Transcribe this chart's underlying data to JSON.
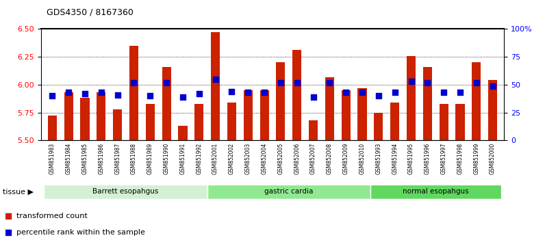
{
  "title": "GDS4350 / 8167360",
  "samples": [
    "GSM851983",
    "GSM851984",
    "GSM851985",
    "GSM851986",
    "GSM851987",
    "GSM851988",
    "GSM851989",
    "GSM851990",
    "GSM851991",
    "GSM851992",
    "GSM852001",
    "GSM852002",
    "GSM852003",
    "GSM852004",
    "GSM852005",
    "GSM852006",
    "GSM852007",
    "GSM852008",
    "GSM852009",
    "GSM852010",
    "GSM851993",
    "GSM851994",
    "GSM851995",
    "GSM851996",
    "GSM851997",
    "GSM851998",
    "GSM851999",
    "GSM852000"
  ],
  "bar_values": [
    5.72,
    5.93,
    5.88,
    5.93,
    5.78,
    6.35,
    5.83,
    6.16,
    5.63,
    5.83,
    6.47,
    5.84,
    5.95,
    5.95,
    6.2,
    6.31,
    5.68,
    6.07,
    5.95,
    5.97,
    5.75,
    5.84,
    6.26,
    6.16,
    5.83,
    5.83,
    6.2,
    6.04
  ],
  "percentile_values": [
    40,
    43,
    42,
    43,
    41,
    52,
    40,
    52,
    39,
    42,
    55,
    44,
    43,
    43,
    52,
    52,
    39,
    52,
    43,
    43,
    40,
    43,
    53,
    52,
    43,
    43,
    52,
    49
  ],
  "groups": [
    {
      "label": "Barrett esopahgus",
      "start": 0,
      "end": 10,
      "color": "#d4f0d4"
    },
    {
      "label": "gastric cardia",
      "start": 10,
      "end": 20,
      "color": "#90e890"
    },
    {
      "label": "normal esopahgus",
      "start": 20,
      "end": 28,
      "color": "#60d860"
    }
  ],
  "bar_color": "#cc2200",
  "dot_color": "#0000cc",
  "ylim_left": [
    5.5,
    6.5
  ],
  "ylim_right": [
    0,
    100
  ],
  "yticks_left": [
    5.5,
    5.75,
    6.0,
    6.25,
    6.5
  ],
  "yticks_right": [
    0,
    25,
    50,
    75,
    100
  ],
  "ytick_labels_right": [
    "0",
    "25",
    "50",
    "75",
    "100%"
  ],
  "grid_vals": [
    5.75,
    6.0,
    6.25
  ],
  "bar_width": 0.55,
  "dot_size": 35,
  "legend_items": [
    {
      "label": "transformed count",
      "color": "#cc2200"
    },
    {
      "label": "percentile rank within the sample",
      "color": "#0000cc"
    }
  ]
}
